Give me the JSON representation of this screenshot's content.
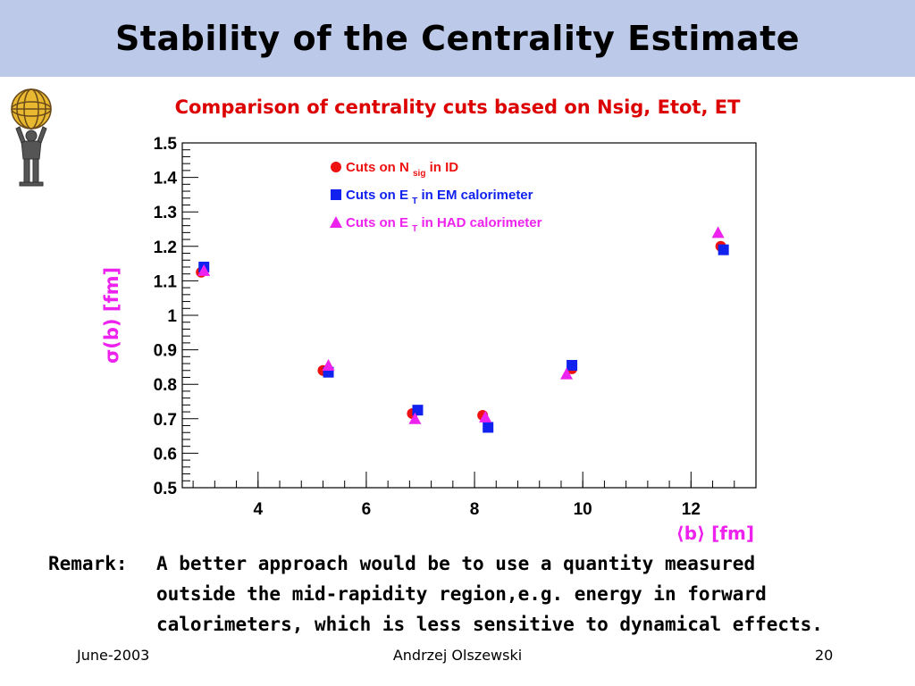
{
  "slide": {
    "title": "Stability of the Centrality Estimate",
    "subtitle": "Comparison of centrality cuts based on Nsig, Etot, ET",
    "subtitle_color": "#dd0000",
    "title_bg": "#bcc9e8",
    "logo_icon": "atlas-figure-icon"
  },
  "remark": {
    "label": "Remark:",
    "lines": [
      "A better approach would be to use a quantity measured",
      "outside the mid-rapidity region,e.g. energy in forward",
      "calorimeters, which is less sensitive to dynamical effects."
    ]
  },
  "footer": {
    "date": "June-2003",
    "author": "Andrzej Olszewski",
    "page": "20"
  },
  "chart_data": {
    "type": "scatter",
    "title": "",
    "xlabel": "⟨b⟩ [fm]",
    "ylabel": "σ(b) [fm]",
    "axis_label_color": "#ee22ee",
    "xlim": [
      2.6,
      13.2
    ],
    "ylim": [
      0.5,
      1.5
    ],
    "xticks": [
      4,
      6,
      8,
      10,
      12
    ],
    "yticks": [
      0.5,
      0.6,
      0.7,
      0.8,
      0.9,
      1,
      1.1,
      1.2,
      1.3,
      1.4,
      1.5
    ],
    "ytick_labels": [
      "0.5",
      "0.6",
      "0.7",
      "0.8",
      "0.9",
      "1",
      "1.1",
      "1.2",
      "1.3",
      "1.4",
      "1.5"
    ],
    "grid": false,
    "legend_placement": "top-center",
    "series": [
      {
        "marker": "circle",
        "color": "#ee1111",
        "legend_text": "Cuts on N",
        "legend_sub": "sig",
        "legend_tail": "in ID",
        "x": [
          2.95,
          5.2,
          6.85,
          8.15,
          9.8,
          12.55
        ],
        "y": [
          1.125,
          0.84,
          0.715,
          0.71,
          0.845,
          1.2
        ]
      },
      {
        "marker": "square",
        "color": "#1122ee",
        "legend_text": "Cuts on E",
        "legend_sub": "T",
        "legend_tail": "in EM calorimeter",
        "x": [
          3.0,
          5.3,
          6.95,
          8.25,
          9.8,
          12.6
        ],
        "y": [
          1.14,
          0.835,
          0.725,
          0.675,
          0.855,
          1.19
        ]
      },
      {
        "marker": "triangle",
        "color": "#ee22ee",
        "legend_text": "Cuts on E",
        "legend_sub": "T",
        "legend_tail": "in HAD calorimeter",
        "x": [
          3.0,
          5.3,
          6.9,
          8.2,
          9.7,
          12.5
        ],
        "y": [
          1.13,
          0.855,
          0.7,
          0.705,
          0.83,
          1.24
        ]
      }
    ]
  }
}
